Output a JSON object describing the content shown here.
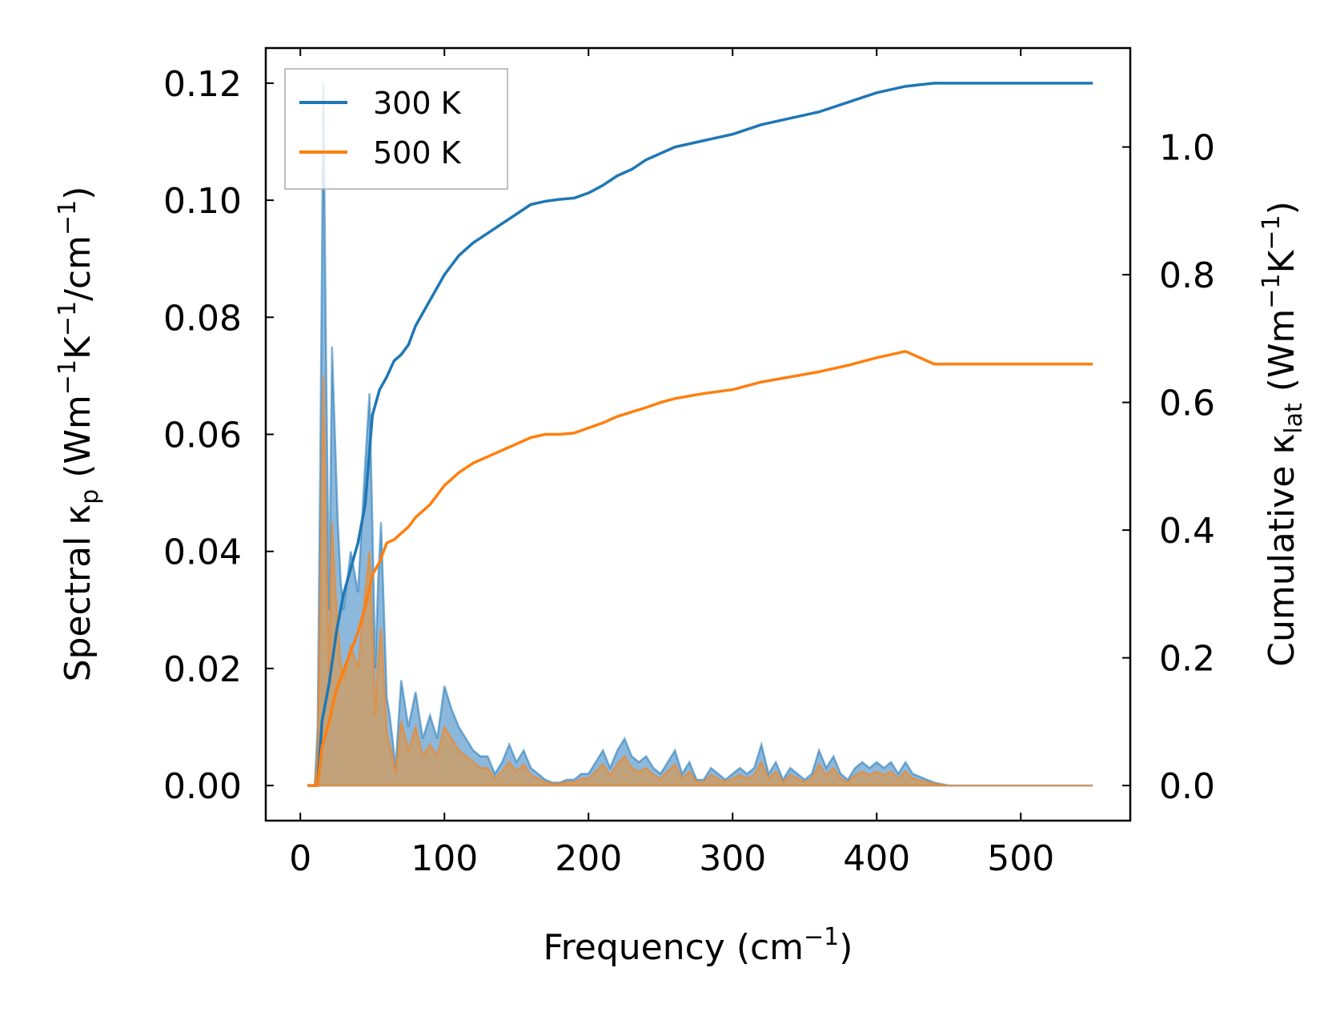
{
  "chart_data": {
    "type": "line",
    "xlabel": {
      "main": "Frequency (cm",
      "sup": "−1",
      "close": ")"
    },
    "ylabel_left": {
      "p1": "Spectral κ",
      "sub": "p",
      "p2": " (Wm",
      "sup1": "−1",
      "p3": "K",
      "sup2": "−1",
      "p4": "/cm",
      "sup3": "−1",
      "p5": ")"
    },
    "ylabel_right": {
      "p1": "Cumulative κ",
      "sub": "lat",
      "p2": " (Wm",
      "sup1": "−1",
      "p3": "K",
      "sup2": "−1",
      "p4": ")"
    },
    "xlim": [
      -24,
      576
    ],
    "ylim_left": [
      -0.006,
      0.126
    ],
    "ylim_right": [
      -0.055,
      1.155
    ],
    "x_ticks": [
      0,
      100,
      200,
      300,
      400,
      500
    ],
    "x_tick_labels": [
      "0",
      "100",
      "200",
      "300",
      "400",
      "500"
    ],
    "y_left_ticks": [
      0.0,
      0.02,
      0.04,
      0.06,
      0.08,
      0.1,
      0.12
    ],
    "y_left_tick_labels": [
      "0.00",
      "0.02",
      "0.04",
      "0.06",
      "0.08",
      "0.10",
      "0.12"
    ],
    "y_right_ticks": [
      0.0,
      0.2,
      0.4,
      0.6,
      0.8,
      1.0
    ],
    "y_right_tick_labels": [
      "0.0",
      "0.2",
      "0.4",
      "0.6",
      "0.8",
      "1.0"
    ],
    "legend": {
      "position": "upper-left",
      "entries": [
        "300 K",
        "500 K"
      ]
    },
    "colors": {
      "s300": "#1f77b4",
      "s500": "#ff7f0e",
      "fill300": "#7fb0d8",
      "fill500": "#c8a06f"
    },
    "series": [
      {
        "name": "300 K",
        "axis": "right",
        "x": [
          5,
          12,
          15,
          20,
          25,
          30,
          35,
          40,
          45,
          50,
          55,
          60,
          65,
          70,
          75,
          80,
          90,
          100,
          110,
          120,
          130,
          140,
          150,
          160,
          170,
          180,
          190,
          200,
          210,
          220,
          230,
          240,
          250,
          260,
          270,
          280,
          300,
          320,
          340,
          360,
          380,
          400,
          420,
          440,
          460,
          500,
          550
        ],
        "y": [
          0.0,
          0.0,
          0.1,
          0.16,
          0.24,
          0.3,
          0.34,
          0.38,
          0.44,
          0.58,
          0.62,
          0.64,
          0.665,
          0.675,
          0.69,
          0.72,
          0.76,
          0.8,
          0.83,
          0.85,
          0.865,
          0.88,
          0.895,
          0.91,
          0.915,
          0.918,
          0.92,
          0.928,
          0.94,
          0.955,
          0.965,
          0.98,
          0.99,
          1.0,
          1.005,
          1.01,
          1.02,
          1.035,
          1.045,
          1.055,
          1.07,
          1.085,
          1.095,
          1.1,
          1.1,
          1.1,
          1.1
        ]
      },
      {
        "name": "500 K",
        "axis": "right",
        "x": [
          5,
          12,
          15,
          20,
          25,
          30,
          35,
          40,
          45,
          50,
          55,
          60,
          65,
          70,
          75,
          80,
          90,
          100,
          110,
          120,
          130,
          140,
          150,
          160,
          170,
          180,
          190,
          200,
          210,
          220,
          230,
          240,
          250,
          260,
          270,
          280,
          300,
          320,
          340,
          360,
          380,
          400,
          420,
          440,
          460,
          500,
          550
        ],
        "y": [
          0.0,
          0.0,
          0.06,
          0.1,
          0.15,
          0.18,
          0.21,
          0.24,
          0.28,
          0.33,
          0.35,
          0.38,
          0.385,
          0.395,
          0.405,
          0.42,
          0.44,
          0.47,
          0.49,
          0.505,
          0.515,
          0.525,
          0.535,
          0.545,
          0.55,
          0.55,
          0.552,
          0.56,
          0.568,
          0.578,
          0.585,
          0.592,
          0.6,
          0.606,
          0.61,
          0.614,
          0.62,
          0.632,
          0.64,
          0.648,
          0.658,
          0.67,
          0.68,
          0.66,
          0.66,
          0.66,
          0.66
        ]
      },
      {
        "name": "300 K spectral",
        "axis": "left",
        "x": [
          5,
          10,
          12,
          14,
          16,
          18,
          20,
          22,
          24,
          26,
          28,
          30,
          35,
          40,
          45,
          48,
          50,
          52,
          54,
          56,
          58,
          60,
          62,
          64,
          66,
          70,
          75,
          80,
          85,
          90,
          95,
          100,
          105,
          110,
          115,
          120,
          125,
          130,
          135,
          140,
          145,
          150,
          155,
          160,
          165,
          170,
          175,
          180,
          185,
          190,
          195,
          200,
          205,
          210,
          215,
          220,
          225,
          230,
          235,
          240,
          245,
          250,
          255,
          260,
          265,
          270,
          275,
          280,
          285,
          290,
          295,
          300,
          305,
          310,
          315,
          320,
          325,
          330,
          335,
          340,
          345,
          350,
          355,
          360,
          365,
          370,
          375,
          380,
          385,
          390,
          395,
          400,
          405,
          410,
          415,
          420,
          425,
          430,
          440,
          450,
          500,
          550
        ],
        "y": [
          0.0,
          0.0,
          0.01,
          0.06,
          0.12,
          0.07,
          0.03,
          0.075,
          0.06,
          0.045,
          0.035,
          0.03,
          0.04,
          0.033,
          0.055,
          0.067,
          0.045,
          0.02,
          0.035,
          0.045,
          0.03,
          0.015,
          0.012,
          0.008,
          0.003,
          0.018,
          0.01,
          0.016,
          0.008,
          0.012,
          0.008,
          0.017,
          0.013,
          0.01,
          0.008,
          0.006,
          0.005,
          0.005,
          0.002,
          0.004,
          0.007,
          0.004,
          0.006,
          0.003,
          0.002,
          0.001,
          0.0005,
          0.0005,
          0.001,
          0.001,
          0.002,
          0.002,
          0.004,
          0.006,
          0.003,
          0.006,
          0.008,
          0.005,
          0.004,
          0.005,
          0.003,
          0.002,
          0.004,
          0.006,
          0.002,
          0.004,
          0.001,
          0.001,
          0.003,
          0.002,
          0.001,
          0.002,
          0.003,
          0.002,
          0.003,
          0.007,
          0.002,
          0.004,
          0.001,
          0.003,
          0.002,
          0.001,
          0.002,
          0.006,
          0.003,
          0.005,
          0.002,
          0.001,
          0.003,
          0.004,
          0.003,
          0.004,
          0.003,
          0.004,
          0.002,
          0.004,
          0.002,
          0.0015,
          0.0005,
          0.0,
          0.0,
          0.0
        ]
      },
      {
        "name": "500 K spectral",
        "axis": "left",
        "x": [
          5,
          10,
          12,
          14,
          16,
          18,
          20,
          22,
          24,
          26,
          28,
          30,
          35,
          40,
          45,
          48,
          50,
          52,
          54,
          56,
          58,
          60,
          62,
          64,
          66,
          70,
          75,
          80,
          85,
          90,
          95,
          100,
          105,
          110,
          115,
          120,
          125,
          130,
          135,
          140,
          145,
          150,
          155,
          160,
          165,
          170,
          175,
          180,
          185,
          190,
          195,
          200,
          205,
          210,
          215,
          220,
          225,
          230,
          235,
          240,
          245,
          250,
          255,
          260,
          265,
          270,
          275,
          280,
          285,
          290,
          295,
          300,
          305,
          310,
          315,
          320,
          325,
          330,
          335,
          340,
          345,
          350,
          355,
          360,
          365,
          370,
          375,
          380,
          385,
          390,
          395,
          400,
          405,
          410,
          415,
          420,
          425,
          430,
          440,
          450,
          500,
          550
        ],
        "y": [
          0.0,
          0.0,
          0.006,
          0.035,
          0.07,
          0.04,
          0.018,
          0.045,
          0.035,
          0.027,
          0.021,
          0.018,
          0.024,
          0.02,
          0.033,
          0.04,
          0.027,
          0.012,
          0.021,
          0.027,
          0.018,
          0.009,
          0.007,
          0.005,
          0.002,
          0.011,
          0.006,
          0.01,
          0.005,
          0.007,
          0.005,
          0.01,
          0.008,
          0.006,
          0.005,
          0.004,
          0.003,
          0.003,
          0.0012,
          0.0024,
          0.004,
          0.0024,
          0.0036,
          0.0018,
          0.0012,
          0.0006,
          0.0003,
          0.0003,
          0.0006,
          0.0006,
          0.0012,
          0.0012,
          0.0024,
          0.0036,
          0.0018,
          0.0036,
          0.005,
          0.003,
          0.0024,
          0.003,
          0.0018,
          0.0012,
          0.0024,
          0.0036,
          0.0012,
          0.0024,
          0.0006,
          0.0006,
          0.0018,
          0.0012,
          0.0006,
          0.0012,
          0.0018,
          0.0012,
          0.0018,
          0.004,
          0.0012,
          0.0024,
          0.0006,
          0.0018,
          0.0012,
          0.0006,
          0.0012,
          0.0036,
          0.0018,
          0.003,
          0.0012,
          0.0006,
          0.0018,
          0.0024,
          0.0018,
          0.0024,
          0.0018,
          0.0024,
          0.0012,
          0.0024,
          0.0012,
          0.0009,
          0.0003,
          0.0,
          0.0,
          0.0
        ]
      }
    ]
  }
}
